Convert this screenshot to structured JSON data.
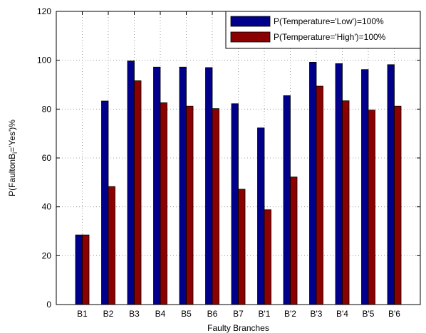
{
  "chart_data": {
    "type": "bar",
    "xlabel": "Faulty Branches",
    "ylabel": {
      "prefix": "P(FaultonB",
      "subscript": "i",
      "suffix": "='Yes')%"
    },
    "ylim": [
      0,
      120
    ],
    "yticks": [
      0,
      20,
      40,
      60,
      80,
      100,
      120
    ],
    "grid": true,
    "legend_position": "top-right",
    "categories": [
      "B1",
      "B2",
      "B3",
      "B4",
      "B5",
      "B6",
      "B7",
      "B'1",
      "B'2",
      "B'3",
      "B'4",
      "B'5",
      "B'6"
    ],
    "series": [
      {
        "name": "P(Temperature='Low')=100%",
        "color": "#00008b",
        "values": [
          28.5,
          83.3,
          99.7,
          97.2,
          97.2,
          97.0,
          82.2,
          72.3,
          85.5,
          99.2,
          98.6,
          96.2,
          98.2
        ]
      },
      {
        "name": "P(Temperature='High')=100%",
        "color": "#8b0000",
        "values": [
          28.5,
          48.3,
          91.6,
          82.6,
          81.2,
          80.2,
          47.2,
          38.8,
          52.2,
          89.4,
          83.4,
          79.6,
          81.2
        ]
      }
    ]
  }
}
